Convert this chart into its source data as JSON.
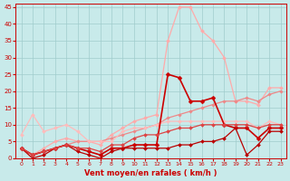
{
  "background_color": "#c8eaea",
  "grid_color": "#a0cccc",
  "xlabel": "Vent moyen/en rafales ( km/h )",
  "xlabel_color": "#cc0000",
  "xlim": [
    -0.5,
    23.5
  ],
  "ylim": [
    0,
    46
  ],
  "yticks": [
    0,
    5,
    10,
    15,
    20,
    25,
    30,
    35,
    40,
    45
  ],
  "xticks": [
    0,
    1,
    2,
    3,
    4,
    5,
    6,
    7,
    8,
    9,
    10,
    11,
    12,
    13,
    14,
    15,
    16,
    17,
    18,
    19,
    20,
    21,
    22,
    23
  ],
  "lines": [
    {
      "x": [
        0,
        1,
        2,
        3,
        4,
        5,
        6,
        7,
        8,
        9,
        10,
        11,
        12,
        13,
        14,
        15,
        16,
        17,
        18,
        19,
        20,
        21,
        22,
        23
      ],
      "y": [
        3,
        1,
        3,
        5,
        6,
        5,
        5,
        4,
        7,
        9,
        11,
        12,
        13,
        35,
        45,
        45,
        38,
        35,
        30,
        17,
        17,
        16,
        21,
        21
      ],
      "color": "#ffaaaa",
      "lw": 0.9,
      "marker": "D",
      "markersize": 2.0
    },
    {
      "x": [
        0,
        1,
        2,
        3,
        4,
        5,
        6,
        7,
        8,
        9,
        10,
        11,
        12,
        13,
        14,
        15,
        16,
        17,
        18,
        19,
        20,
        21,
        22,
        23
      ],
      "y": [
        3,
        1,
        2,
        3,
        4,
        5,
        5,
        5,
        6,
        7,
        8,
        9,
        10,
        12,
        13,
        14,
        15,
        16,
        17,
        17,
        18,
        17,
        19,
        20
      ],
      "color": "#ee8888",
      "lw": 0.9,
      "marker": "D",
      "markersize": 1.8
    },
    {
      "x": [
        0,
        1,
        2,
        3,
        4,
        5,
        6,
        7,
        8,
        9,
        10,
        11,
        12,
        13,
        14,
        15,
        16,
        17,
        18,
        19,
        20,
        21,
        22,
        23
      ],
      "y": [
        7,
        13,
        8,
        9,
        10,
        8,
        5,
        5,
        5,
        8,
        9,
        9,
        10,
        11,
        11,
        11,
        11,
        11,
        11,
        11,
        11,
        9,
        11,
        10
      ],
      "color": "#ffbbbb",
      "lw": 0.9,
      "marker": "D",
      "markersize": 2.0
    },
    {
      "x": [
        0,
        1,
        2,
        3,
        4,
        5,
        6,
        7,
        8,
        9,
        10,
        11,
        12,
        13,
        14,
        15,
        16,
        17,
        18,
        19,
        20,
        21,
        22,
        23
      ],
      "y": [
        3,
        1,
        2,
        3,
        4,
        3,
        2,
        1,
        3,
        3,
        4,
        4,
        4,
        25,
        24,
        17,
        17,
        18,
        10,
        9,
        9,
        6,
        9,
        9
      ],
      "color": "#cc0000",
      "lw": 1.2,
      "marker": "D",
      "markersize": 2.5
    },
    {
      "x": [
        0,
        1,
        2,
        3,
        4,
        5,
        6,
        7,
        8,
        9,
        10,
        11,
        12,
        13,
        14,
        15,
        16,
        17,
        18,
        19,
        20,
        21,
        22,
        23
      ],
      "y": [
        3,
        0,
        1,
        3,
        4,
        2,
        1,
        0,
        2,
        3,
        3,
        3,
        3,
        3,
        4,
        4,
        5,
        5,
        6,
        9,
        1,
        4,
        8,
        8
      ],
      "color": "#bb0000",
      "lw": 0.9,
      "marker": "D",
      "markersize": 2.0
    },
    {
      "x": [
        0,
        1,
        2,
        3,
        4,
        5,
        6,
        7,
        8,
        9,
        10,
        11,
        12,
        13,
        14,
        15,
        16,
        17,
        18,
        19,
        20,
        21,
        22,
        23
      ],
      "y": [
        3,
        1,
        2,
        3,
        4,
        3,
        3,
        2,
        4,
        4,
        6,
        7,
        7,
        8,
        9,
        9,
        10,
        10,
        10,
        10,
        10,
        9,
        10,
        10
      ],
      "color": "#dd4444",
      "lw": 0.9,
      "marker": "D",
      "markersize": 2.0
    }
  ]
}
